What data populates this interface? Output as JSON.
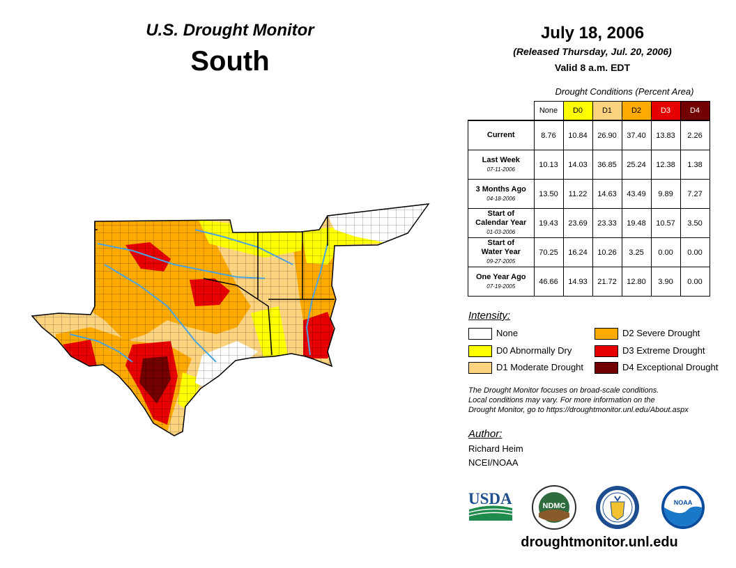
{
  "header": {
    "title": "U.S. Drought Monitor",
    "region": "South",
    "date": "July 18, 2006",
    "released": "(Released Thursday, Jul. 20, 2006)",
    "valid": "Valid 8 a.m. EDT"
  },
  "table": {
    "caption": "Drought Conditions (Percent Area)",
    "columns": [
      "None",
      "D0",
      "D1",
      "D2",
      "D3",
      "D4"
    ],
    "column_colors": [
      "#ffffff",
      "#ffff00",
      "#fcd37f",
      "#ffaa00",
      "#e60000",
      "#730000"
    ],
    "rows": [
      {
        "label": "Current",
        "label2": "",
        "sub": "",
        "values": [
          "8.76",
          "10.84",
          "26.90",
          "37.40",
          "13.83",
          "2.26"
        ]
      },
      {
        "label": "Last Week",
        "label2": "",
        "sub": "07-11-2006",
        "values": [
          "10.13",
          "14.03",
          "36.85",
          "25.24",
          "12.38",
          "1.38"
        ]
      },
      {
        "label": "3 Months Ago",
        "label2": "",
        "sub": "04-18-2006",
        "values": [
          "13.50",
          "11.22",
          "14.63",
          "43.49",
          "9.89",
          "7.27"
        ]
      },
      {
        "label": "Start of",
        "label2": "Calendar Year",
        "sub": "01-03-2006",
        "values": [
          "19.43",
          "23.69",
          "23.33",
          "19.48",
          "10.57",
          "3.50"
        ]
      },
      {
        "label": "Start of",
        "label2": "Water Year",
        "sub": "09-27-2005",
        "values": [
          "70.25",
          "16.24",
          "10.26",
          "3.25",
          "0.00",
          "0.00"
        ]
      },
      {
        "label": "One Year Ago",
        "label2": "",
        "sub": "07-19-2005",
        "values": [
          "46.66",
          "14.93",
          "21.72",
          "12.80",
          "3.90",
          "0.00"
        ]
      }
    ]
  },
  "legend": {
    "title": "Intensity:",
    "items": [
      {
        "label": "None",
        "color": "#ffffff"
      },
      {
        "label": "D0 Abnormally Dry",
        "color": "#ffff00"
      },
      {
        "label": "D1 Moderate Drought",
        "color": "#fcd37f"
      },
      {
        "label": "D2 Severe Drought",
        "color": "#ffaa00"
      },
      {
        "label": "D3 Extreme Drought",
        "color": "#e60000"
      },
      {
        "label": "D4 Exceptional Drought",
        "color": "#730000"
      }
    ]
  },
  "note": {
    "line1": "The Drought Monitor focuses on broad-scale conditions.",
    "line2": "Local conditions may vary. For more information on the",
    "line3": "Drought Monitor, go to https://droughtmonitor.unl.edu/About.aspx"
  },
  "author": {
    "label": "Author:",
    "name": "Richard Heim",
    "org": "NCEI/NOAA"
  },
  "logos": {
    "usda": "USDA",
    "ndmc": "NDMC",
    "noaa": "NOAA"
  },
  "footer": {
    "website": "droughtmonitor.unl.edu"
  },
  "map_colors": {
    "d0": "#ffff00",
    "d1": "#fcd37f",
    "d2": "#ffaa00",
    "d3": "#e60000",
    "d4": "#730000",
    "water": "#4aa3df",
    "border": "#000000"
  }
}
